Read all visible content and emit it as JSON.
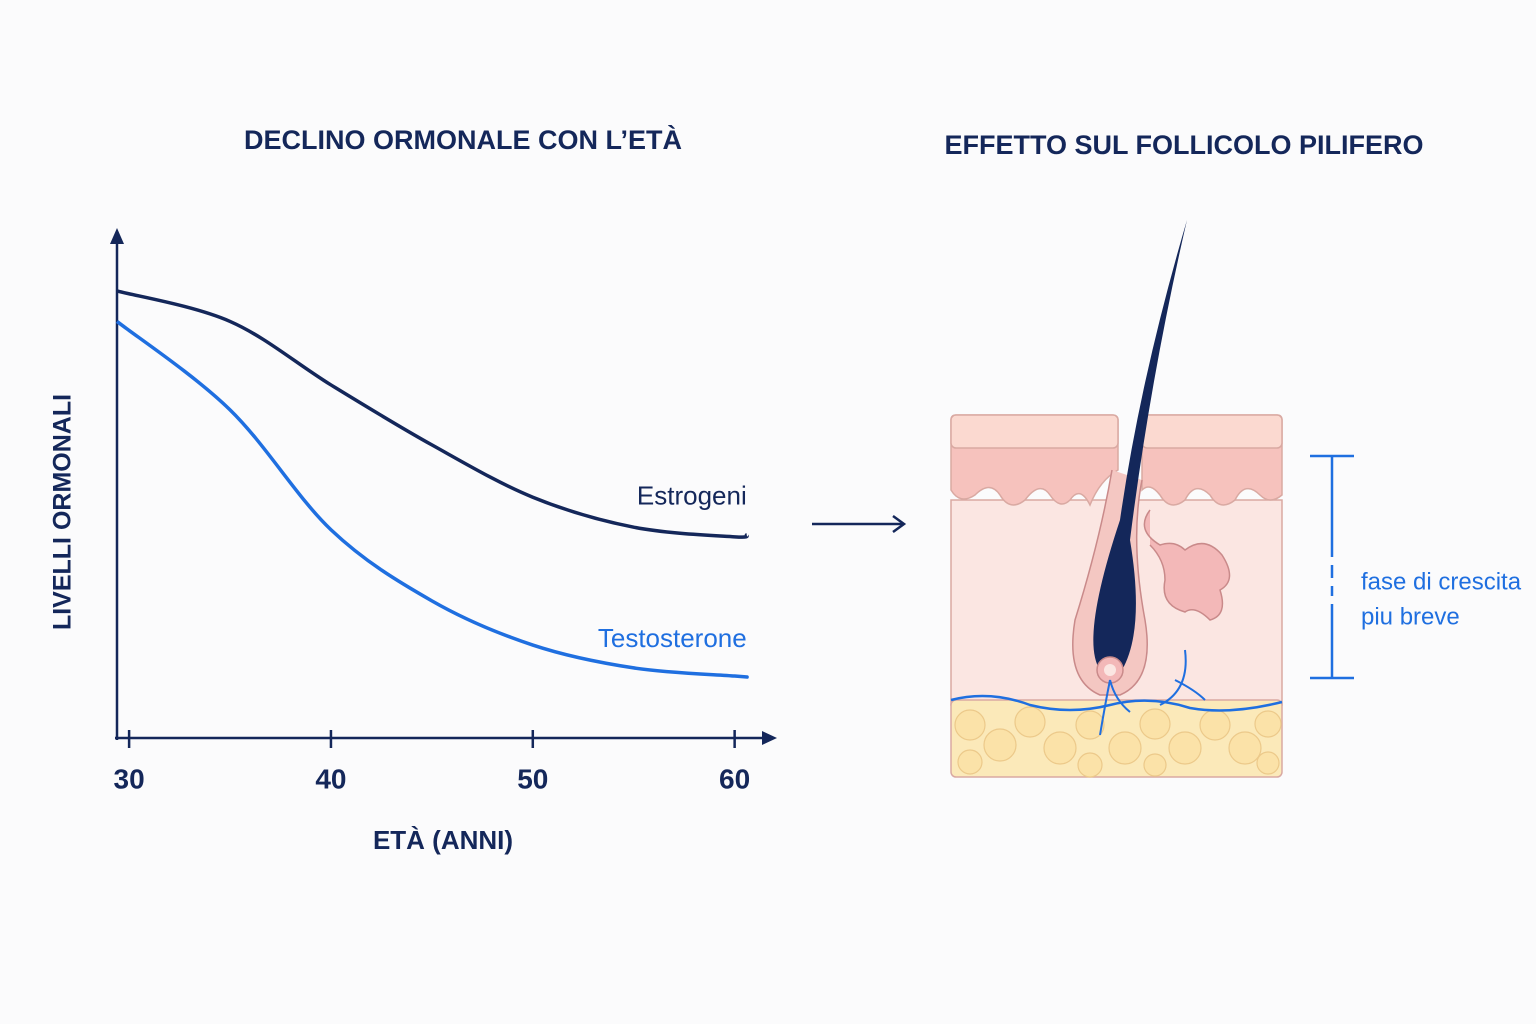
{
  "chart_data": {
    "type": "line",
    "title": "DECLINO ORMONALE CON L’ETÀ",
    "x_label": "ETÀ (ANNI)",
    "y_label": "LIVELLI ORMONALI",
    "x": [
      29.4,
      35,
      40,
      45,
      50,
      55,
      60,
      60.6
    ],
    "series": [
      {
        "name": "Estrogeni",
        "color": "#14275a",
        "values": [
          88,
          82,
          69.5,
          57.7,
          47.4,
          41.5,
          39.6,
          40
        ]
      },
      {
        "name": "Testosterone",
        "color": "#1f6fe0",
        "values": [
          82,
          64.6,
          41,
          27,
          18.3,
          13.8,
          12.2,
          12
        ]
      }
    ],
    "xlim": [
      29.4,
      62
    ],
    "xticks": [
      30,
      40,
      50,
      60
    ],
    "ylim": [
      0,
      100
    ]
  },
  "diagram": {
    "title": "EFFETTO SUL FOLLICOLO PILIFERO",
    "annotation": [
      "fase di crescita",
      "piu breve"
    ]
  }
}
